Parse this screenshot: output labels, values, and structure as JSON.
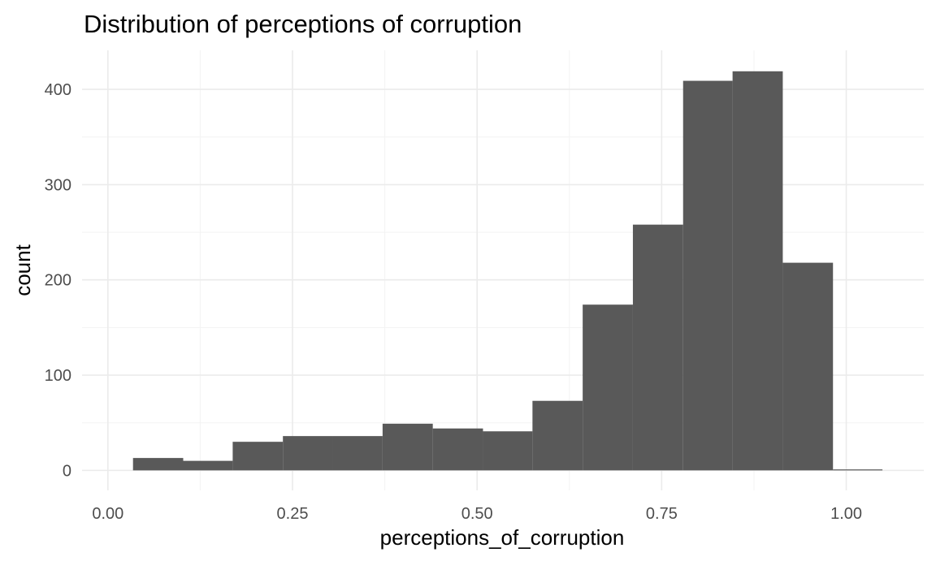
{
  "chart_data": {
    "type": "bar",
    "title": "Distribution of perceptions of corruption",
    "xlabel": "perceptions_of_corruption",
    "ylabel": "count",
    "xlim": [
      -0.035,
      1.105
    ],
    "ylim": [
      -21,
      441
    ],
    "x_ticks": [
      0.0,
      0.25,
      0.5,
      0.75,
      1.0
    ],
    "x_tick_labels": [
      "0.00",
      "0.25",
      "0.50",
      "0.75",
      "1.00"
    ],
    "x_minor_ticks": [
      0.125,
      0.375,
      0.625,
      0.875
    ],
    "y_ticks": [
      0,
      100,
      200,
      300,
      400
    ],
    "y_tick_labels": [
      "0",
      "100",
      "200",
      "300",
      "400"
    ],
    "y_minor_ticks": [
      50,
      150,
      250,
      350
    ],
    "grid": true,
    "bar_color": "#595959",
    "bins": [
      {
        "x0": 0.034,
        "x1": 0.102,
        "count": 13
      },
      {
        "x0": 0.102,
        "x1": 0.169,
        "count": 10
      },
      {
        "x0": 0.169,
        "x1": 0.237,
        "count": 30
      },
      {
        "x0": 0.237,
        "x1": 0.305,
        "count": 36
      },
      {
        "x0": 0.305,
        "x1": 0.372,
        "count": 36
      },
      {
        "x0": 0.372,
        "x1": 0.44,
        "count": 49
      },
      {
        "x0": 0.44,
        "x1": 0.508,
        "count": 44
      },
      {
        "x0": 0.508,
        "x1": 0.575,
        "count": 41
      },
      {
        "x0": 0.575,
        "x1": 0.643,
        "count": 73
      },
      {
        "x0": 0.643,
        "x1": 0.711,
        "count": 174
      },
      {
        "x0": 0.711,
        "x1": 0.779,
        "count": 258
      },
      {
        "x0": 0.779,
        "x1": 0.846,
        "count": 409
      },
      {
        "x0": 0.846,
        "x1": 0.914,
        "count": 419
      },
      {
        "x0": 0.914,
        "x1": 0.982,
        "count": 218
      },
      {
        "x0": 0.982,
        "x1": 1.049,
        "count": 1
      }
    ]
  }
}
